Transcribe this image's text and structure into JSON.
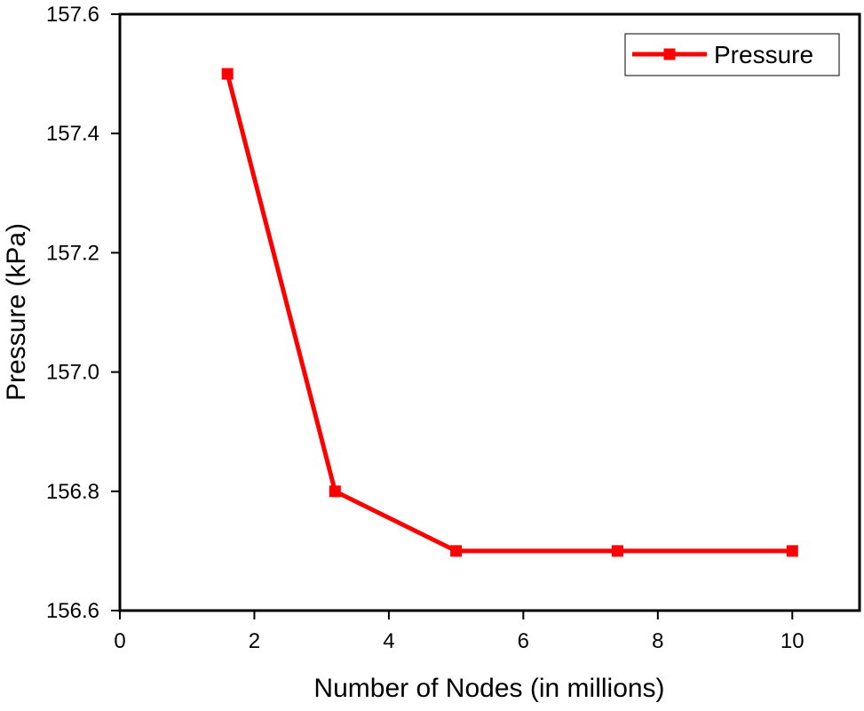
{
  "chart_data": {
    "type": "line",
    "xlabel": "Number of Nodes (in millions)",
    "ylabel": "Pressure (kPa)",
    "xlim": [
      0,
      11.0
    ],
    "ylim": [
      156.6,
      157.6
    ],
    "xticks": [
      0,
      2,
      4,
      6,
      8,
      10
    ],
    "yticks": [
      156.6,
      156.8,
      157.0,
      157.2,
      157.4,
      157.6
    ],
    "xtick_labels": [
      "0",
      "2",
      "4",
      "6",
      "8",
      "10"
    ],
    "ytick_labels": [
      "156.6",
      "156.8",
      "157.0",
      "157.2",
      "157.4",
      "157.6"
    ],
    "legend_position": "top-right",
    "grid": false,
    "series": [
      {
        "name": "Pressure",
        "color": "#ff0000",
        "marker": "square",
        "x": [
          1.6,
          3.2,
          5.0,
          7.4,
          10.0
        ],
        "y": [
          157.5,
          156.8,
          156.7,
          156.7,
          156.7
        ]
      }
    ]
  }
}
